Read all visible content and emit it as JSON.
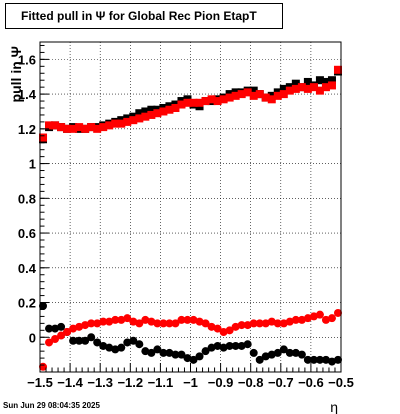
{
  "title": "Fitted pull in  Ψ  for Global Rec Pion EtapT",
  "footer": "Sun Jun 29 08:04:35 2025",
  "chart_data": {
    "type": "scatter",
    "title": "Fitted pull in  Ψ  for Global Rec Pion EtapT",
    "xlabel": "η",
    "ylabel": "pull in Ψ",
    "xlim": [
      -1.5,
      -0.5
    ],
    "ylim": [
      -0.2,
      1.7
    ],
    "xticks": [
      -1.5,
      -1.4,
      -1.3,
      -1.2,
      -1.1,
      -1,
      -0.9,
      -0.8,
      -0.7,
      -0.6,
      -0.5
    ],
    "xtick_labels": [
      "−1.5",
      "−1.4",
      "−1.3",
      "−1.2",
      "−1.1",
      "−1",
      "−0.9",
      "−0.8",
      "−0.7",
      "−0.6",
      "−0.5"
    ],
    "yticks": [
      0,
      0.2,
      0.4,
      0.6,
      0.8,
      1,
      1.2,
      1.4,
      1.6
    ],
    "ytick_labels": [
      "0",
      "0.2",
      "0.4",
      "0.6",
      "0.8",
      "1",
      "1.2",
      "1.4",
      "1.6"
    ],
    "grid": true,
    "x": [
      -1.49,
      -1.47,
      -1.45,
      -1.43,
      -1.41,
      -1.39,
      -1.37,
      -1.35,
      -1.33,
      -1.31,
      -1.29,
      -1.27,
      -1.25,
      -1.23,
      -1.21,
      -1.19,
      -1.17,
      -1.15,
      -1.13,
      -1.11,
      -1.09,
      -1.07,
      -1.05,
      -1.03,
      -1.01,
      -0.99,
      -0.97,
      -0.95,
      -0.93,
      -0.91,
      -0.89,
      -0.87,
      -0.85,
      -0.83,
      -0.81,
      -0.79,
      -0.77,
      -0.75,
      -0.73,
      -0.71,
      -0.69,
      -0.67,
      -0.65,
      -0.63,
      -0.61,
      -0.59,
      -0.57,
      -0.55,
      -0.53,
      -0.51
    ],
    "series": [
      {
        "color": "#000000",
        "marker": "square",
        "values": [
          1.14,
          1.21,
          1.22,
          1.21,
          1.2,
          1.21,
          1.2,
          1.2,
          1.21,
          1.21,
          1.22,
          1.23,
          1.24,
          1.25,
          1.26,
          1.27,
          1.29,
          1.3,
          1.31,
          1.31,
          1.32,
          1.33,
          1.34,
          1.36,
          1.37,
          1.34,
          1.33,
          1.36,
          1.36,
          1.37,
          1.38,
          1.4,
          1.41,
          1.41,
          1.42,
          1.42,
          1.4,
          1.38,
          1.39,
          1.41,
          1.43,
          1.44,
          1.46,
          1.44,
          1.47,
          1.45,
          1.48,
          1.47,
          1.48,
          1.53
        ]
      },
      {
        "color": "#ff0000",
        "marker": "square",
        "values": [
          1.15,
          1.22,
          1.22,
          1.21,
          1.2,
          1.2,
          1.21,
          1.2,
          1.21,
          1.2,
          1.21,
          1.22,
          1.23,
          1.23,
          1.24,
          1.25,
          1.26,
          1.27,
          1.28,
          1.29,
          1.3,
          1.31,
          1.32,
          1.34,
          1.35,
          1.35,
          1.35,
          1.36,
          1.37,
          1.36,
          1.37,
          1.38,
          1.39,
          1.4,
          1.41,
          1.39,
          1.4,
          1.38,
          1.37,
          1.39,
          1.4,
          1.42,
          1.43,
          1.44,
          1.43,
          1.44,
          1.42,
          1.44,
          1.45,
          1.54
        ]
      },
      {
        "color": "#000000",
        "marker": "circle",
        "values": [
          0.18,
          0.05,
          0.05,
          0.06,
          0.03,
          -0.02,
          -0.02,
          -0.02,
          0.0,
          -0.03,
          -0.05,
          -0.06,
          -0.07,
          -0.06,
          -0.03,
          -0.02,
          -0.04,
          -0.08,
          -0.09,
          -0.07,
          -0.09,
          -0.09,
          -0.1,
          -0.1,
          -0.12,
          -0.13,
          -0.11,
          -0.08,
          -0.06,
          -0.05,
          -0.06,
          -0.05,
          -0.05,
          -0.05,
          -0.04,
          -0.09,
          -0.13,
          -0.11,
          -0.1,
          -0.09,
          -0.07,
          -0.09,
          -0.09,
          -0.1,
          -0.13,
          -0.13,
          -0.13,
          -0.13,
          -0.14,
          -0.13
        ]
      },
      {
        "color": "#ff0000",
        "marker": "circle",
        "values": [
          -0.17,
          -0.03,
          -0.01,
          0.01,
          0.03,
          0.05,
          0.06,
          0.07,
          0.08,
          0.08,
          0.09,
          0.09,
          0.1,
          0.1,
          0.11,
          0.09,
          0.08,
          0.1,
          0.09,
          0.08,
          0.08,
          0.08,
          0.08,
          0.1,
          0.1,
          0.1,
          0.09,
          0.08,
          0.06,
          0.05,
          0.03,
          0.04,
          0.06,
          0.07,
          0.07,
          0.08,
          0.08,
          0.08,
          0.09,
          0.08,
          0.08,
          0.09,
          0.1,
          0.1,
          0.11,
          0.12,
          0.13,
          0.1,
          0.11,
          0.14
        ]
      }
    ]
  }
}
